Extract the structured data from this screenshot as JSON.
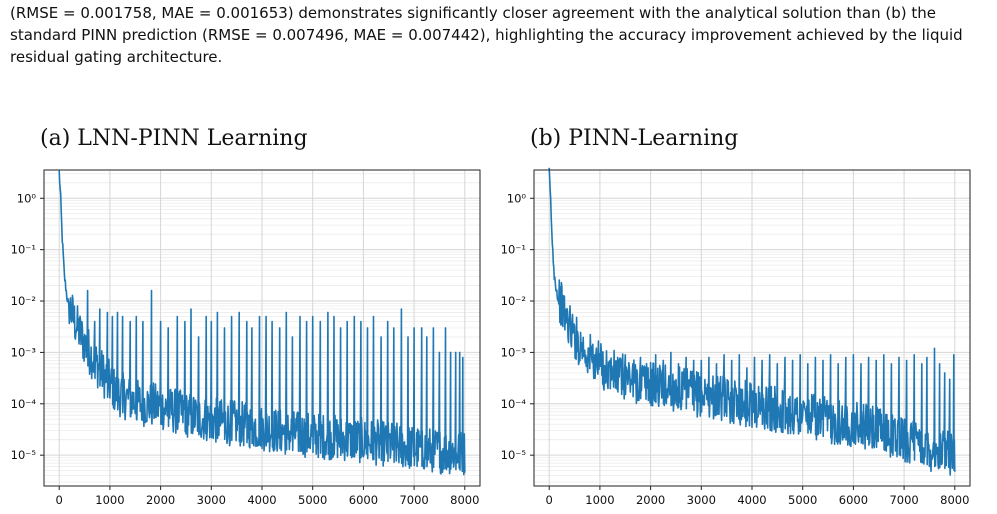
{
  "caption": {
    "line1": "(RMSE = 0.001758, MAE = 0.001653) demonstrates significantly closer agreement with the analytical solution than (b) the",
    "line2": "standard PINN prediction (RMSE = 0.007496, MAE = 0.007442), highlighting the accuracy improvement achieved by the liquid",
    "line3": "residual gating architecture."
  },
  "chart_data": [
    {
      "type": "line",
      "title": "(a) LNN-PINN Learning",
      "xlabel": "",
      "ylabel": "",
      "xlim": [
        -300,
        8300
      ],
      "ylim_log10": [
        -5.6,
        0.55
      ],
      "y_scale": "log",
      "grid": true,
      "xticks": [
        0,
        1000,
        2000,
        3000,
        4000,
        5000,
        6000,
        7000,
        8000
      ],
      "yticks_labels": [
        "10⁻⁵",
        "10⁻⁴",
        "10⁻³",
        "10⁻²",
        "10⁻¹",
        "10⁰"
      ],
      "yticks_exp": [
        -5,
        -4,
        -3,
        -2,
        -1,
        0
      ],
      "color": "#1f77b4",
      "series": [
        {
          "x": [
            0,
            30,
            60,
            100,
            150,
            200,
            300,
            400,
            500,
            700,
            900,
            1100,
            1300,
            1500,
            1800,
            2100,
            2500,
            3000,
            3500,
            4000,
            4500,
            5000,
            5500,
            6000,
            6500,
            7000,
            7500,
            8000
          ],
          "y": [
            3.0,
            0.9,
            0.15,
            0.03,
            0.012,
            0.006,
            0.003,
            0.0018,
            0.0011,
            0.0005,
            0.00025,
            0.00013,
            0.0001,
            8e-05,
            7e-05,
            6e-05,
            4.5e-05,
            3.5e-05,
            3e-05,
            2.5e-05,
            2e-05,
            1.8e-05,
            1.6e-05,
            1.4e-05,
            1.2e-05,
            1e-05,
            9e-06,
            8e-06
          ]
        }
      ],
      "spikes": {
        "x": [
          560,
          700,
          800,
          950,
          1050,
          1150,
          1250,
          1400,
          1520,
          1650,
          1820,
          2000,
          2150,
          2330,
          2480,
          2600,
          2750,
          2900,
          3000,
          3120,
          3260,
          3400,
          3550,
          3700,
          3800,
          3950,
          4080,
          4200,
          4350,
          4480,
          4600,
          4750,
          4880,
          5000,
          5150,
          5300,
          5420,
          5550,
          5680,
          5820,
          5950,
          6080,
          6200,
          6350,
          6480,
          6600,
          6750,
          6880,
          7000,
          7150,
          7250,
          7380,
          7500,
          7620,
          7720,
          7820,
          7900,
          7960
        ],
        "y": [
          0.016,
          0.004,
          0.007,
          0.006,
          0.005,
          0.006,
          0.005,
          0.004,
          0.005,
          0.004,
          0.016,
          0.004,
          0.003,
          0.005,
          0.004,
          0.007,
          0.002,
          0.005,
          0.004,
          0.006,
          0.003,
          0.005,
          0.006,
          0.004,
          0.003,
          0.005,
          0.005,
          0.004,
          0.003,
          0.006,
          0.002,
          0.005,
          0.004,
          0.005,
          0.004,
          0.006,
          0.005,
          0.003,
          0.004,
          0.005,
          0.004,
          0.003,
          0.005,
          0.002,
          0.004,
          0.003,
          0.007,
          0.002,
          0.003,
          0.003,
          0.002,
          0.003,
          0.001,
          0.003,
          0.001,
          0.001,
          0.001,
          0.0008
        ]
      }
    },
    {
      "type": "line",
      "title": "(b) PINN-Learning",
      "xlabel": "",
      "ylabel": "",
      "xlim": [
        -300,
        8300
      ],
      "ylim_log10": [
        -5.6,
        0.55
      ],
      "y_scale": "log",
      "grid": true,
      "xticks": [
        0,
        1000,
        2000,
        3000,
        4000,
        5000,
        6000,
        7000,
        8000
      ],
      "yticks_labels": [
        "10⁻⁵",
        "10⁻⁴",
        "10⁻³",
        "10⁻²",
        "10⁻¹",
        "10⁰"
      ],
      "yticks_exp": [
        -5,
        -4,
        -3,
        -2,
        -1,
        0
      ],
      "color": "#1f77b4",
      "series": [
        {
          "x": [
            0,
            30,
            60,
            100,
            150,
            200,
            300,
            400,
            500,
            700,
            900,
            1100,
            1300,
            1500,
            1800,
            2100,
            2500,
            3000,
            3500,
            4000,
            4500,
            5000,
            5500,
            6000,
            6500,
            7000,
            7500,
            8000
          ],
          "y": [
            3.0,
            0.8,
            0.12,
            0.03,
            0.014,
            0.008,
            0.004,
            0.0025,
            0.0015,
            0.0008,
            0.0005,
            0.00035,
            0.00028,
            0.00024,
            0.0002,
            0.00017,
            0.00014,
            0.00011,
            9e-05,
            7e-05,
            5.5e-05,
            4.5e-05,
            3.5e-05,
            3e-05,
            2.2e-05,
            1.5e-05,
            1e-05,
            8e-06
          ]
        }
      ],
      "spikes": {
        "x": [
          600,
          750,
          900,
          1050,
          1200,
          1350,
          1500,
          1650,
          1800,
          1950,
          2100,
          2250,
          2400,
          2550,
          2700,
          2850,
          3000,
          3150,
          3300,
          3450,
          3600,
          3750,
          3900,
          4050,
          4200,
          4350,
          4500,
          4650,
          4800,
          4950,
          5100,
          5250,
          5400,
          5550,
          5700,
          5850,
          6000,
          6150,
          6300,
          6450,
          6600,
          6750,
          6900,
          7050,
          7200,
          7350,
          7450,
          7600,
          7700,
          7800,
          7900,
          7980
        ],
        "y": [
          0.001,
          0.0008,
          0.0009,
          0.0006,
          0.0007,
          0.0008,
          0.0009,
          0.0006,
          0.0008,
          0.0005,
          0.0009,
          0.0007,
          0.001,
          0.0006,
          0.0008,
          0.0007,
          0.0007,
          0.0008,
          0.0006,
          0.0009,
          0.0007,
          0.0009,
          0.0005,
          0.0008,
          0.0007,
          0.0009,
          0.0006,
          0.0008,
          0.0007,
          0.0009,
          0.0006,
          0.0008,
          0.0007,
          0.0009,
          0.0006,
          0.0008,
          0.0009,
          0.0006,
          0.0008,
          0.0007,
          0.0009,
          0.0006,
          0.0008,
          0.0007,
          0.0009,
          0.0006,
          0.0008,
          0.0012,
          0.0006,
          0.0004,
          0.0003,
          0.0009
        ]
      }
    }
  ]
}
